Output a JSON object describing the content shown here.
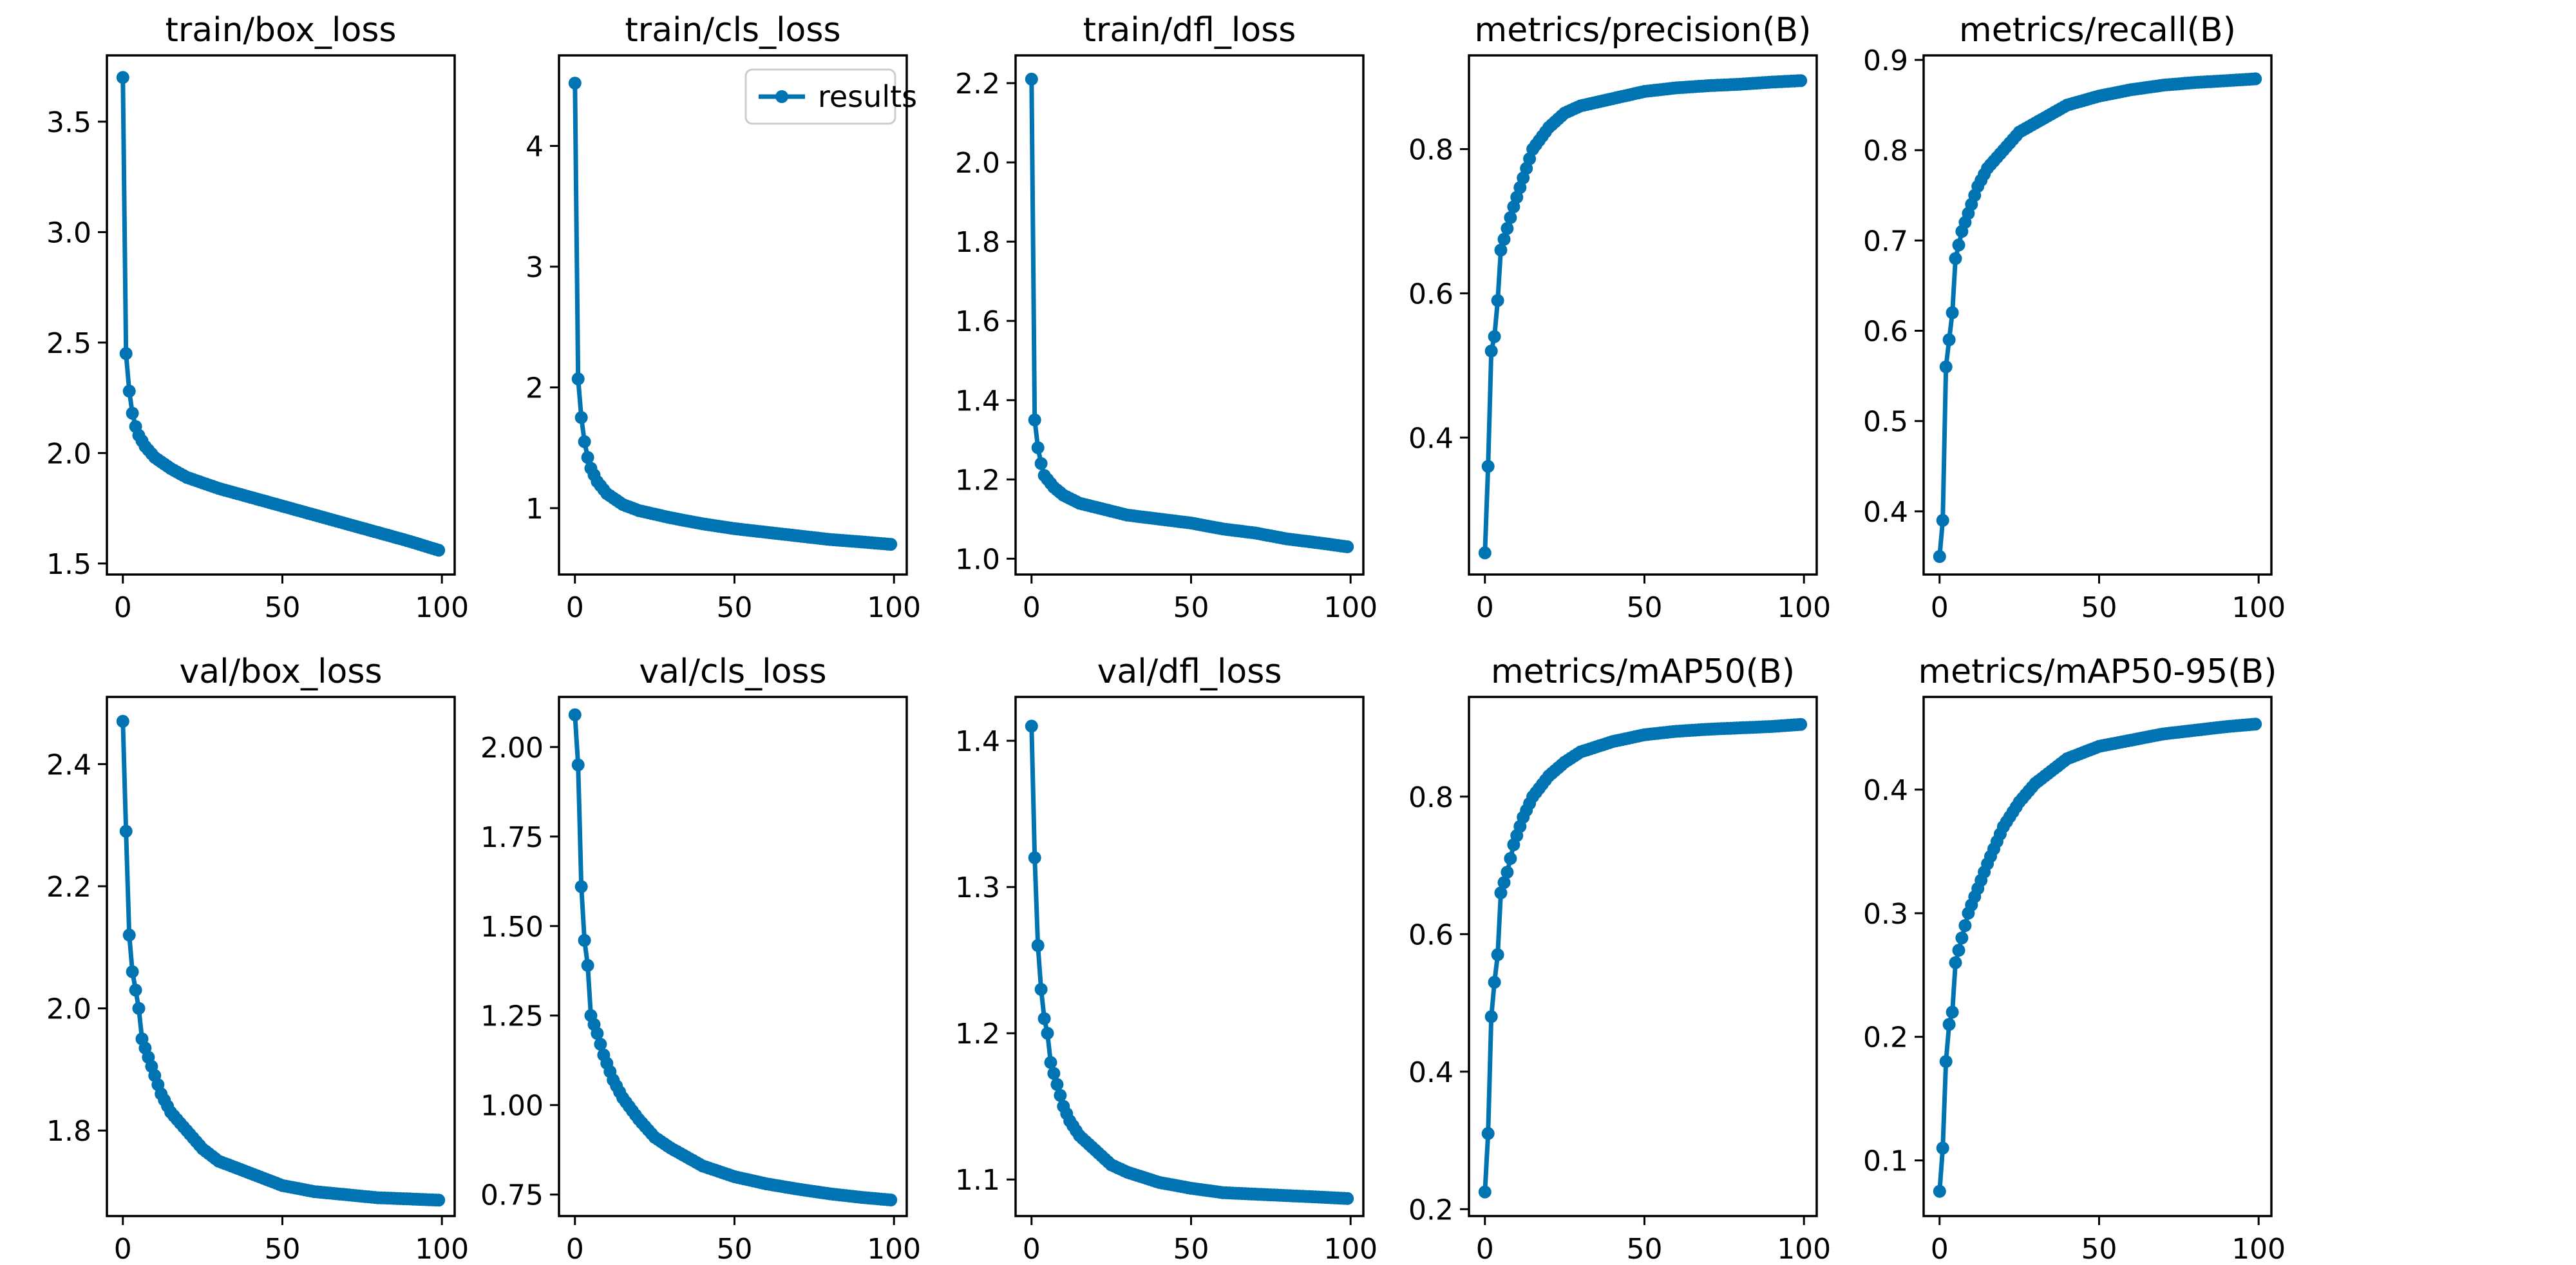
{
  "chart_data": [
    {
      "type": "line",
      "title": "train/box_loss",
      "xlim": [
        -5,
        104
      ],
      "ylim": [
        1.45,
        3.8
      ],
      "xticks": [
        0,
        50,
        100
      ],
      "xtick_labels": [
        "0",
        "50",
        "100"
      ],
      "yticks": [
        1.5,
        2.0,
        2.5,
        3.0,
        3.5
      ],
      "ytick_labels": [
        "1.5",
        "2.0",
        "2.5",
        "3.0",
        "3.5"
      ],
      "series": [
        {
          "name": "results",
          "anchors": [
            [
              0,
              3.7
            ],
            [
              1,
              2.45
            ],
            [
              2,
              2.28
            ],
            [
              3,
              2.18
            ],
            [
              4,
              2.12
            ],
            [
              5,
              2.08
            ],
            [
              7,
              2.03
            ],
            [
              10,
              1.98
            ],
            [
              15,
              1.93
            ],
            [
              20,
              1.89
            ],
            [
              30,
              1.84
            ],
            [
              40,
              1.8
            ],
            [
              50,
              1.76
            ],
            [
              60,
              1.72
            ],
            [
              70,
              1.68
            ],
            [
              80,
              1.64
            ],
            [
              90,
              1.6
            ],
            [
              99,
              1.56
            ]
          ]
        }
      ],
      "legend": null
    },
    {
      "type": "line",
      "title": "train/cls_loss",
      "xlim": [
        -5,
        104
      ],
      "ylim": [
        0.45,
        4.75
      ],
      "xticks": [
        0,
        50,
        100
      ],
      "xtick_labels": [
        "0",
        "50",
        "100"
      ],
      "yticks": [
        1,
        2,
        3,
        4
      ],
      "ytick_labels": [
        "1",
        "2",
        "3",
        "4"
      ],
      "series": [
        {
          "name": "results",
          "anchors": [
            [
              0,
              4.52
            ],
            [
              1,
              2.07
            ],
            [
              2,
              1.75
            ],
            [
              3,
              1.55
            ],
            [
              4,
              1.42
            ],
            [
              5,
              1.33
            ],
            [
              7,
              1.22
            ],
            [
              10,
              1.12
            ],
            [
              15,
              1.03
            ],
            [
              20,
              0.98
            ],
            [
              30,
              0.92
            ],
            [
              40,
              0.87
            ],
            [
              50,
              0.83
            ],
            [
              60,
              0.8
            ],
            [
              70,
              0.77
            ],
            [
              80,
              0.74
            ],
            [
              90,
              0.72
            ],
            [
              99,
              0.7
            ]
          ]
        }
      ],
      "legend": {
        "label": "results",
        "position": "upper-right"
      }
    },
    {
      "type": "line",
      "title": "train/dfl_loss",
      "xlim": [
        -5,
        104
      ],
      "ylim": [
        0.96,
        2.27
      ],
      "xticks": [
        0,
        50,
        100
      ],
      "xtick_labels": [
        "0",
        "50",
        "100"
      ],
      "yticks": [
        1.0,
        1.2,
        1.4,
        1.6,
        1.8,
        2.0,
        2.2
      ],
      "ytick_labels": [
        "1.0",
        "1.2",
        "1.4",
        "1.6",
        "1.8",
        "2.0",
        "2.2"
      ],
      "series": [
        {
          "name": "results",
          "anchors": [
            [
              0,
              2.21
            ],
            [
              1,
              1.35
            ],
            [
              2,
              1.28
            ],
            [
              3,
              1.24
            ],
            [
              4,
              1.21
            ],
            [
              5,
              1.2
            ],
            [
              7,
              1.18
            ],
            [
              10,
              1.16
            ],
            [
              15,
              1.14
            ],
            [
              20,
              1.13
            ],
            [
              30,
              1.11
            ],
            [
              40,
              1.1
            ],
            [
              50,
              1.09
            ],
            [
              60,
              1.075
            ],
            [
              70,
              1.065
            ],
            [
              80,
              1.05
            ],
            [
              90,
              1.04
            ],
            [
              99,
              1.03
            ]
          ]
        }
      ],
      "legend": null
    },
    {
      "type": "line",
      "title": "metrics/precision(B)",
      "xlim": [
        -5,
        104
      ],
      "ylim": [
        0.21,
        0.93
      ],
      "xticks": [
        0,
        50,
        100
      ],
      "xtick_labels": [
        "0",
        "50",
        "100"
      ],
      "yticks": [
        0.4,
        0.6,
        0.8
      ],
      "ytick_labels": [
        "0.4",
        "0.6",
        "0.8"
      ],
      "series": [
        {
          "name": "results",
          "anchors": [
            [
              0,
              0.24
            ],
            [
              1,
              0.36
            ],
            [
              2,
              0.52
            ],
            [
              3,
              0.54
            ],
            [
              4,
              0.59
            ],
            [
              5,
              0.66
            ],
            [
              7,
              0.69
            ],
            [
              9,
              0.72
            ],
            [
              12,
              0.76
            ],
            [
              15,
              0.8
            ],
            [
              20,
              0.83
            ],
            [
              25,
              0.85
            ],
            [
              30,
              0.86
            ],
            [
              40,
              0.87
            ],
            [
              50,
              0.88
            ],
            [
              60,
              0.885
            ],
            [
              70,
              0.888
            ],
            [
              80,
              0.89
            ],
            [
              90,
              0.893
            ],
            [
              99,
              0.895
            ]
          ]
        }
      ],
      "legend": null
    },
    {
      "type": "line",
      "title": "metrics/recall(B)",
      "xlim": [
        -5,
        104
      ],
      "ylim": [
        0.33,
        0.905
      ],
      "xticks": [
        0,
        50,
        100
      ],
      "xtick_labels": [
        "0",
        "50",
        "100"
      ],
      "yticks": [
        0.4,
        0.5,
        0.6,
        0.7,
        0.8,
        0.9
      ],
      "ytick_labels": [
        "0.4",
        "0.5",
        "0.6",
        "0.7",
        "0.8",
        "0.9"
      ],
      "series": [
        {
          "name": "results",
          "anchors": [
            [
              0,
              0.35
            ],
            [
              1,
              0.39
            ],
            [
              2,
              0.56
            ],
            [
              3,
              0.59
            ],
            [
              4,
              0.62
            ],
            [
              5,
              0.68
            ],
            [
              7,
              0.71
            ],
            [
              9,
              0.73
            ],
            [
              12,
              0.76
            ],
            [
              15,
              0.78
            ],
            [
              20,
              0.8
            ],
            [
              25,
              0.82
            ],
            [
              30,
              0.83
            ],
            [
              40,
              0.85
            ],
            [
              50,
              0.86
            ],
            [
              60,
              0.867
            ],
            [
              70,
              0.872
            ],
            [
              80,
              0.875
            ],
            [
              90,
              0.877
            ],
            [
              99,
              0.879
            ]
          ]
        }
      ],
      "legend": null
    },
    {
      "type": "line",
      "title": "val/box_loss",
      "xlim": [
        -5,
        104
      ],
      "ylim": [
        1.66,
        2.51
      ],
      "xticks": [
        0,
        50,
        100
      ],
      "xtick_labels": [
        "0",
        "50",
        "100"
      ],
      "yticks": [
        1.8,
        2.0,
        2.2,
        2.4
      ],
      "ytick_labels": [
        "1.8",
        "2.0",
        "2.2",
        "2.4"
      ],
      "series": [
        {
          "name": "results",
          "anchors": [
            [
              0,
              2.47
            ],
            [
              1,
              2.29
            ],
            [
              2,
              2.12
            ],
            [
              3,
              2.06
            ],
            [
              4,
              2.03
            ],
            [
              5,
              2.0
            ],
            [
              6,
              1.95
            ],
            [
              8,
              1.92
            ],
            [
              10,
              1.89
            ],
            [
              12,
              1.86
            ],
            [
              15,
              1.83
            ],
            [
              20,
              1.8
            ],
            [
              25,
              1.77
            ],
            [
              30,
              1.75
            ],
            [
              35,
              1.74
            ],
            [
              40,
              1.73
            ],
            [
              50,
              1.71
            ],
            [
              60,
              1.7
            ],
            [
              70,
              1.695
            ],
            [
              80,
              1.69
            ],
            [
              90,
              1.688
            ],
            [
              99,
              1.686
            ]
          ]
        }
      ],
      "legend": null
    },
    {
      "type": "line",
      "title": "val/cls_loss",
      "xlim": [
        -5,
        104
      ],
      "ylim": [
        0.69,
        2.14
      ],
      "xticks": [
        0,
        50,
        100
      ],
      "xtick_labels": [
        "0",
        "50",
        "100"
      ],
      "yticks": [
        0.75,
        1.0,
        1.25,
        1.5,
        1.75,
        2.0
      ],
      "ytick_labels": [
        "0.75",
        "1.00",
        "1.25",
        "1.50",
        "1.75",
        "2.00"
      ],
      "series": [
        {
          "name": "results",
          "anchors": [
            [
              0,
              2.09
            ],
            [
              1,
              1.95
            ],
            [
              2,
              1.61
            ],
            [
              3,
              1.46
            ],
            [
              4,
              1.39
            ],
            [
              5,
              1.25
            ],
            [
              7,
              1.2
            ],
            [
              9,
              1.14
            ],
            [
              12,
              1.07
            ],
            [
              15,
              1.02
            ],
            [
              20,
              0.96
            ],
            [
              25,
              0.91
            ],
            [
              30,
              0.88
            ],
            [
              40,
              0.83
            ],
            [
              50,
              0.8
            ],
            [
              60,
              0.78
            ],
            [
              70,
              0.765
            ],
            [
              80,
              0.752
            ],
            [
              90,
              0.742
            ],
            [
              99,
              0.735
            ]
          ]
        }
      ],
      "legend": null
    },
    {
      "type": "line",
      "title": "val/dfl_loss",
      "xlim": [
        -5,
        104
      ],
      "ylim": [
        1.075,
        1.43
      ],
      "xticks": [
        0,
        50,
        100
      ],
      "xtick_labels": [
        "0",
        "50",
        "100"
      ],
      "yticks": [
        1.1,
        1.2,
        1.3,
        1.4
      ],
      "ytick_labels": [
        "1.1",
        "1.2",
        "1.3",
        "1.4"
      ],
      "series": [
        {
          "name": "results",
          "anchors": [
            [
              0,
              1.41
            ],
            [
              1,
              1.32
            ],
            [
              2,
              1.26
            ],
            [
              3,
              1.23
            ],
            [
              4,
              1.21
            ],
            [
              5,
              1.2
            ],
            [
              6,
              1.18
            ],
            [
              8,
              1.165
            ],
            [
              10,
              1.15
            ],
            [
              12,
              1.14
            ],
            [
              15,
              1.13
            ],
            [
              20,
              1.12
            ],
            [
              25,
              1.11
            ],
            [
              30,
              1.105
            ],
            [
              40,
              1.098
            ],
            [
              50,
              1.094
            ],
            [
              60,
              1.091
            ],
            [
              70,
              1.09
            ],
            [
              80,
              1.089
            ],
            [
              90,
              1.088
            ],
            [
              99,
              1.087
            ]
          ]
        }
      ],
      "legend": null
    },
    {
      "type": "line",
      "title": "metrics/mAP50(B)",
      "xlim": [
        -5,
        104
      ],
      "ylim": [
        0.19,
        0.945
      ],
      "xticks": [
        0,
        50,
        100
      ],
      "xtick_labels": [
        "0",
        "50",
        "100"
      ],
      "yticks": [
        0.2,
        0.4,
        0.6,
        0.8
      ],
      "ytick_labels": [
        "0.2",
        "0.4",
        "0.6",
        "0.8"
      ],
      "series": [
        {
          "name": "results",
          "anchors": [
            [
              0,
              0.225
            ],
            [
              1,
              0.31
            ],
            [
              2,
              0.48
            ],
            [
              3,
              0.53
            ],
            [
              4,
              0.57
            ],
            [
              5,
              0.66
            ],
            [
              7,
              0.69
            ],
            [
              9,
              0.73
            ],
            [
              12,
              0.77
            ],
            [
              15,
              0.8
            ],
            [
              20,
              0.83
            ],
            [
              25,
              0.85
            ],
            [
              30,
              0.865
            ],
            [
              40,
              0.88
            ],
            [
              50,
              0.89
            ],
            [
              60,
              0.895
            ],
            [
              70,
              0.898
            ],
            [
              80,
              0.9
            ],
            [
              90,
              0.902
            ],
            [
              99,
              0.905
            ]
          ]
        }
      ],
      "legend": null
    },
    {
      "type": "line",
      "title": "metrics/mAP50-95(B)",
      "xlim": [
        -5,
        104
      ],
      "ylim": [
        0.055,
        0.475
      ],
      "xticks": [
        0,
        50,
        100
      ],
      "xtick_labels": [
        "0",
        "50",
        "100"
      ],
      "yticks": [
        0.1,
        0.2,
        0.3,
        0.4
      ],
      "ytick_labels": [
        "0.1",
        "0.2",
        "0.3",
        "0.4"
      ],
      "series": [
        {
          "name": "results",
          "anchors": [
            [
              0,
              0.075
            ],
            [
              1,
              0.11
            ],
            [
              2,
              0.18
            ],
            [
              3,
              0.21
            ],
            [
              4,
              0.22
            ],
            [
              5,
              0.26
            ],
            [
              7,
              0.28
            ],
            [
              9,
              0.3
            ],
            [
              12,
              0.32
            ],
            [
              15,
              0.34
            ],
            [
              20,
              0.37
            ],
            [
              25,
              0.39
            ],
            [
              30,
              0.405
            ],
            [
              40,
              0.425
            ],
            [
              50,
              0.435
            ],
            [
              60,
              0.44
            ],
            [
              70,
              0.445
            ],
            [
              80,
              0.448
            ],
            [
              90,
              0.451
            ],
            [
              99,
              0.453
            ]
          ]
        }
      ],
      "legend": null
    }
  ],
  "style": {
    "line_color": "#0073b2",
    "axis_color": "#000000",
    "background": "#ffffff"
  }
}
